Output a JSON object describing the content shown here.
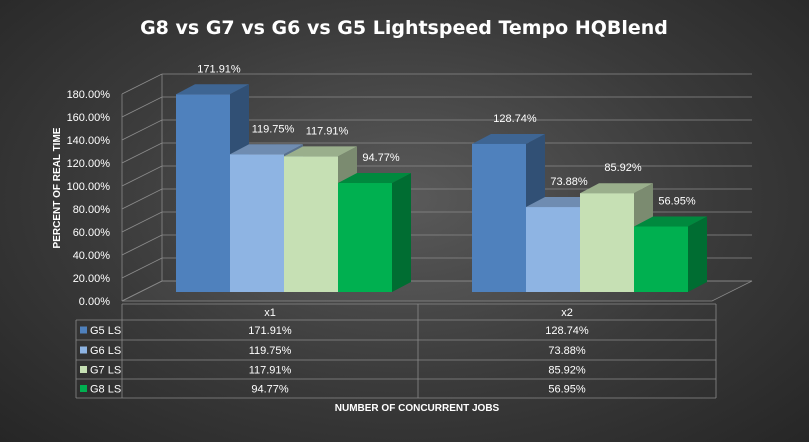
{
  "chart_data": {
    "type": "bar",
    "title": "G8 vs G7 vs G6 vs G5 Lightspeed Tempo HQBlend",
    "ylabel": "PERCENT OF REAL TIME",
    "xlabel": "NUMBER OF CONCURRENT JOBS",
    "ylim": [
      0,
      180
    ],
    "y_ticks": [
      "0.00%",
      "20.00%",
      "40.00%",
      "60.00%",
      "80.00%",
      "100.00%",
      "120.00%",
      "140.00%",
      "160.00%",
      "180.00%"
    ],
    "grid": true,
    "legend": "data-table",
    "categories": [
      "x1",
      "x2"
    ],
    "series": [
      {
        "name": "G5 LS",
        "color": "#4f81bd",
        "values": [
          171.91,
          128.74
        ],
        "labels": [
          "171.91%",
          "128.74%"
        ]
      },
      {
        "name": "G6 LS",
        "color": "#8eb4e3",
        "values": [
          119.75,
          73.88
        ],
        "labels": [
          "119.75%",
          "73.88%"
        ]
      },
      {
        "name": "G7 LS",
        "color": "#c6e0b4",
        "values": [
          117.91,
          85.92
        ],
        "labels": [
          "117.91%",
          "85.92%"
        ]
      },
      {
        "name": "G8 LS",
        "color": "#00b050",
        "values": [
          94.77,
          56.95
        ],
        "labels": [
          "94.77%",
          "56.95%"
        ]
      }
    ]
  }
}
